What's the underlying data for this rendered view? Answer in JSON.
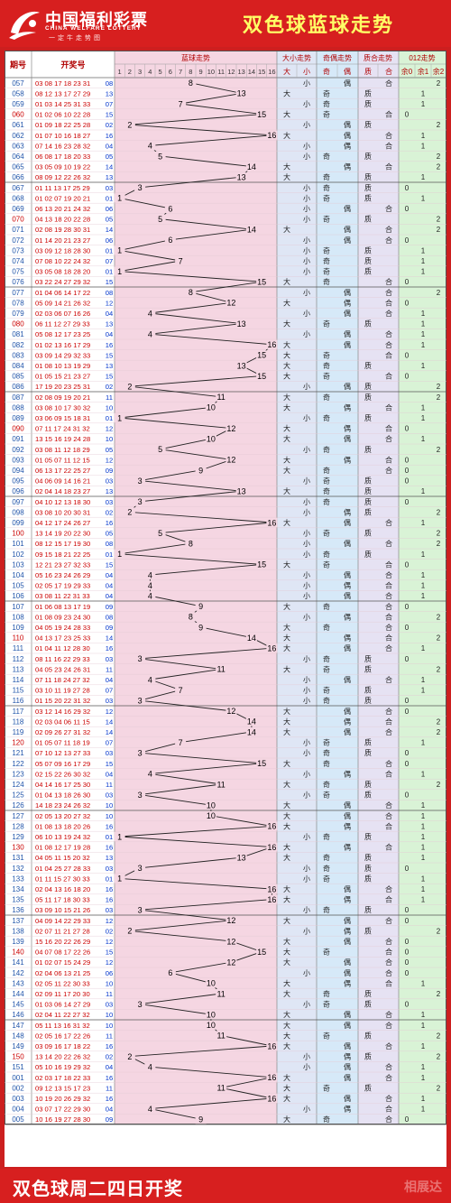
{
  "header": {
    "logo_cn": "中国福利彩票",
    "logo_en": "CHINA WELFARE LOTTERY",
    "logo_slogan": "一定牛走势图",
    "title": "双色球蓝球走势"
  },
  "table_headers": {
    "period": "期号",
    "draw": "开奖号",
    "blue": "蓝球走势",
    "bigsmall": "大小走势",
    "oddeven": "奇偶走势",
    "primecomp": "质合走势",
    "mod3": "012走势",
    "big": "大",
    "small": "小",
    "odd": "奇",
    "even": "偶",
    "prime": "质",
    "composite": "合",
    "r0": "余0",
    "r1": "余1",
    "r2": "余2",
    "blue_cols": [
      "1",
      "2",
      "3",
      "4",
      "5",
      "6",
      "7",
      "8",
      "9",
      "10",
      "11",
      "12",
      "13",
      "14",
      "15",
      "16"
    ]
  },
  "footer": {
    "text": "双色球周二四日开奖",
    "watermark": "相展达"
  },
  "colors": {
    "frame": "#d71f1f",
    "title": "#ffff66",
    "blue_zone": "#f5d6e2",
    "bigsmall_zone": "#dfe6f5",
    "oddeven_zone": "#d6e9f8",
    "primecomp_zone": "#e6e2f3",
    "mod3_zone": "#d9f3d6",
    "number_red": "#b00000"
  },
  "chart_data": {
    "type": "line",
    "title": "双色球蓝球走势",
    "x_label": "期号",
    "y_label": "蓝球",
    "ylim": [
      1,
      16
    ],
    "draws": [
      {
        "period": "057",
        "reds": "03 08 17 18 23 31",
        "blue": "08"
      },
      {
        "period": "058",
        "reds": "08 12 13 17 27 29",
        "blue": "13"
      },
      {
        "period": "059",
        "reds": "01 03 14 25 31 33",
        "blue": "07"
      },
      {
        "period": "060",
        "reds": "01 02 06 10 22 28",
        "blue": "15"
      },
      {
        "period": "061",
        "reds": "01 09 18 22 25 28",
        "blue": "02"
      },
      {
        "period": "062",
        "reds": "01 07 10 16 18 27",
        "blue": "16"
      },
      {
        "period": "063",
        "reds": "07 14 16 23 28 32",
        "blue": "04"
      },
      {
        "period": "064",
        "reds": "06 08 17 18 20 33",
        "blue": "05"
      },
      {
        "period": "065",
        "reds": "03 05 09 10 19 22",
        "blue": "14"
      },
      {
        "period": "066",
        "reds": "08 09 12 22 26 32",
        "blue": "13"
      },
      {
        "period": "067",
        "reds": "01 11 13 17 25 29",
        "blue": "03"
      },
      {
        "period": "068",
        "reds": "01 02 07 19 20 21",
        "blue": "01"
      },
      {
        "period": "069",
        "reds": "06 13 20 21 24 32",
        "blue": "06"
      },
      {
        "period": "070",
        "reds": "04 13 18 20 22 28",
        "blue": "05"
      },
      {
        "period": "071",
        "reds": "02 08 19 28 30 31",
        "blue": "14"
      },
      {
        "period": "072",
        "reds": "01 14 20 21 23 27",
        "blue": "06"
      },
      {
        "period": "073",
        "reds": "03 09 12 18 28 30",
        "blue": "01"
      },
      {
        "period": "074",
        "reds": "07 08 10 22 24 32",
        "blue": "07"
      },
      {
        "period": "075",
        "reds": "03 05 08 18 28 20",
        "blue": "01"
      },
      {
        "period": "076",
        "reds": "03 22 24 27 29 32",
        "blue": "15"
      },
      {
        "period": "077",
        "reds": "01 04 06 14 17 22",
        "blue": "08"
      },
      {
        "period": "078",
        "reds": "05 09 14 21 26 32",
        "blue": "12"
      },
      {
        "period": "079",
        "reds": "02 03 06 07 16 26",
        "blue": "04"
      },
      {
        "period": "080",
        "reds": "06 11 12 27 29 33",
        "blue": "13"
      },
      {
        "period": "081",
        "reds": "05 08 12 17 23 25",
        "blue": "04"
      },
      {
        "period": "082",
        "reds": "01 02 13 16 17 29",
        "blue": "16"
      },
      {
        "period": "083",
        "reds": "03 09 14 29 32 33",
        "blue": "15"
      },
      {
        "period": "084",
        "reds": "01 08 10 13 19 29",
        "blue": "13"
      },
      {
        "period": "085",
        "reds": "01 05 15 21 23 27",
        "blue": "15"
      },
      {
        "period": "086",
        "reds": "17 19 20 23 25 31",
        "blue": "02"
      },
      {
        "period": "087",
        "reds": "02 08 09 19 20 21",
        "blue": "11"
      },
      {
        "period": "088",
        "reds": "03 08 10 17 30 32",
        "blue": "10"
      },
      {
        "period": "089",
        "reds": "03 06 09 15 18 31",
        "blue": "01"
      },
      {
        "period": "090",
        "reds": "07 11 17 24 31 32",
        "blue": "12"
      },
      {
        "period": "091",
        "reds": "13 15 16 19 24 28",
        "blue": "10"
      },
      {
        "period": "092",
        "reds": "03 08 11 12 18 29",
        "blue": "05"
      },
      {
        "period": "093",
        "reds": "01 05 07 11 12 15",
        "blue": "12"
      },
      {
        "period": "094",
        "reds": "06 13 17 22 25 27",
        "blue": "09"
      },
      {
        "period": "095",
        "reds": "04 06 09 14 16 21",
        "blue": "03"
      },
      {
        "period": "096",
        "reds": "02 04 14 18 23 27",
        "blue": "13"
      },
      {
        "period": "097",
        "reds": "04 10 12 13 18 30",
        "blue": "03"
      },
      {
        "period": "098",
        "reds": "03 08 10 20 30 31",
        "blue": "02"
      },
      {
        "period": "099",
        "reds": "04 12 17 24 26 27",
        "blue": "16"
      },
      {
        "period": "100",
        "reds": "13 14 19 20 22 30",
        "blue": "05"
      },
      {
        "period": "101",
        "reds": "08 12 15 17 19 30",
        "blue": "08"
      },
      {
        "period": "102",
        "reds": "09 15 18 21 22 25",
        "blue": "01"
      },
      {
        "period": "103",
        "reds": "12 21 23 27 32 33",
        "blue": "15"
      },
      {
        "period": "104",
        "reds": "05 16 23 24 26 29",
        "blue": "04"
      },
      {
        "period": "105",
        "reds": "02 05 17 19 29 33",
        "blue": "04"
      },
      {
        "period": "106",
        "reds": "03 08 11 22 31 33",
        "blue": "04"
      },
      {
        "period": "107",
        "reds": "01 06 08 13 17 19",
        "blue": "09"
      },
      {
        "period": "108",
        "reds": "01 08 09 23 24 30",
        "blue": "08"
      },
      {
        "period": "109",
        "reds": "04 05 19 24 28 33",
        "blue": "09"
      },
      {
        "period": "110",
        "reds": "04 13 17 23 25 33",
        "blue": "14"
      },
      {
        "period": "111",
        "reds": "01 04 11 12 28 30",
        "blue": "16"
      },
      {
        "period": "112",
        "reds": "08 11 16 22 29 33",
        "blue": "03"
      },
      {
        "period": "113",
        "reds": "04 05 23 24 26 31",
        "blue": "11"
      },
      {
        "period": "114",
        "reds": "07 11 18 24 27 32",
        "blue": "04"
      },
      {
        "period": "115",
        "reds": "03 10 11 19 27 28",
        "blue": "07"
      },
      {
        "period": "116",
        "reds": "01 15 20 22 31 32",
        "blue": "03"
      },
      {
        "period": "117",
        "reds": "03 12 14 16 29 32",
        "blue": "12"
      },
      {
        "period": "118",
        "reds": "02 03 04 06 11 15",
        "blue": "14"
      },
      {
        "period": "119",
        "reds": "02 09 26 27 31 32",
        "blue": "14"
      },
      {
        "period": "120",
        "reds": "01 05 07 11 18 19",
        "blue": "07"
      },
      {
        "period": "121",
        "reds": "07 10 12 13 27 33",
        "blue": "03"
      },
      {
        "period": "122",
        "reds": "05 07 09 16 17 29",
        "blue": "15"
      },
      {
        "period": "123",
        "reds": "02 15 22 26 30 32",
        "blue": "04"
      },
      {
        "period": "124",
        "reds": "04 14 16 17 25 30",
        "blue": "11"
      },
      {
        "period": "125",
        "reds": "01 04 13 18 26 30",
        "blue": "03"
      },
      {
        "period": "126",
        "reds": "14 18 23 24 26 32",
        "blue": "10"
      },
      {
        "period": "127",
        "reds": "02 05 13 20 27 32",
        "blue": "10"
      },
      {
        "period": "128",
        "reds": "01 08 13 18 20 26",
        "blue": "16"
      },
      {
        "period": "129",
        "reds": "06 10 13 19 24 32",
        "blue": "01"
      },
      {
        "period": "130",
        "reds": "01 08 12 17 19 28",
        "blue": "16"
      },
      {
        "period": "131",
        "reds": "04 05 11 15 20 32",
        "blue": "13"
      },
      {
        "period": "132",
        "reds": "01 04 25 27 28 33",
        "blue": "03"
      },
      {
        "period": "133",
        "reds": "01 11 15 27 30 33",
        "blue": "01"
      },
      {
        "period": "134",
        "reds": "02 04 13 16 18 20",
        "blue": "16"
      },
      {
        "period": "135",
        "reds": "05 11 17 18 30 33",
        "blue": "16"
      },
      {
        "period": "136",
        "reds": "03 09 10 15 21 26",
        "blue": "03"
      },
      {
        "period": "137",
        "reds": "04 09 14 22 29 33",
        "blue": "12"
      },
      {
        "period": "138",
        "reds": "02 07 11 21 27 28",
        "blue": "02"
      },
      {
        "period": "139",
        "reds": "15 16 20 22 26 29",
        "blue": "12"
      },
      {
        "period": "140",
        "reds": "04 07 08 17 22 26",
        "blue": "15"
      },
      {
        "period": "141",
        "reds": "01 02 07 15 24 29",
        "blue": "12"
      },
      {
        "period": "142",
        "reds": "02 04 06 13 21 25",
        "blue": "06"
      },
      {
        "period": "143",
        "reds": "02 05 11 22 30 33",
        "blue": "10"
      },
      {
        "period": "144",
        "reds": "02 09 11 17 20 30",
        "blue": "11"
      },
      {
        "period": "145",
        "reds": "01 03 06 14 27 29",
        "blue": "03"
      },
      {
        "period": "146",
        "reds": "02 04 11 22 27 32",
        "blue": "10"
      },
      {
        "period": "147",
        "reds": "05 11 13 16 31 32",
        "blue": "10"
      },
      {
        "period": "148",
        "reds": "02 05 16 17 22 26",
        "blue": "11"
      },
      {
        "period": "149",
        "reds": "03 09 16 17 18 22",
        "blue": "16"
      },
      {
        "period": "150",
        "reds": "13 14 20 22 26 32",
        "blue": "02"
      },
      {
        "period": "151",
        "reds": "05 10 16 19 29 32",
        "blue": "04"
      },
      {
        "period": "001",
        "reds": "02 03 17 18 22 33",
        "blue": "16"
      },
      {
        "period": "002",
        "reds": "09 12 13 15 17 23",
        "blue": "11"
      },
      {
        "period": "003",
        "reds": "10 19 20 26 29 32",
        "blue": "16"
      },
      {
        "period": "004",
        "reds": "03 07 17 22 29 30",
        "blue": "04"
      },
      {
        "period": "005",
        "reds": "10 16 19 27 28 30",
        "blue": "09"
      }
    ]
  }
}
